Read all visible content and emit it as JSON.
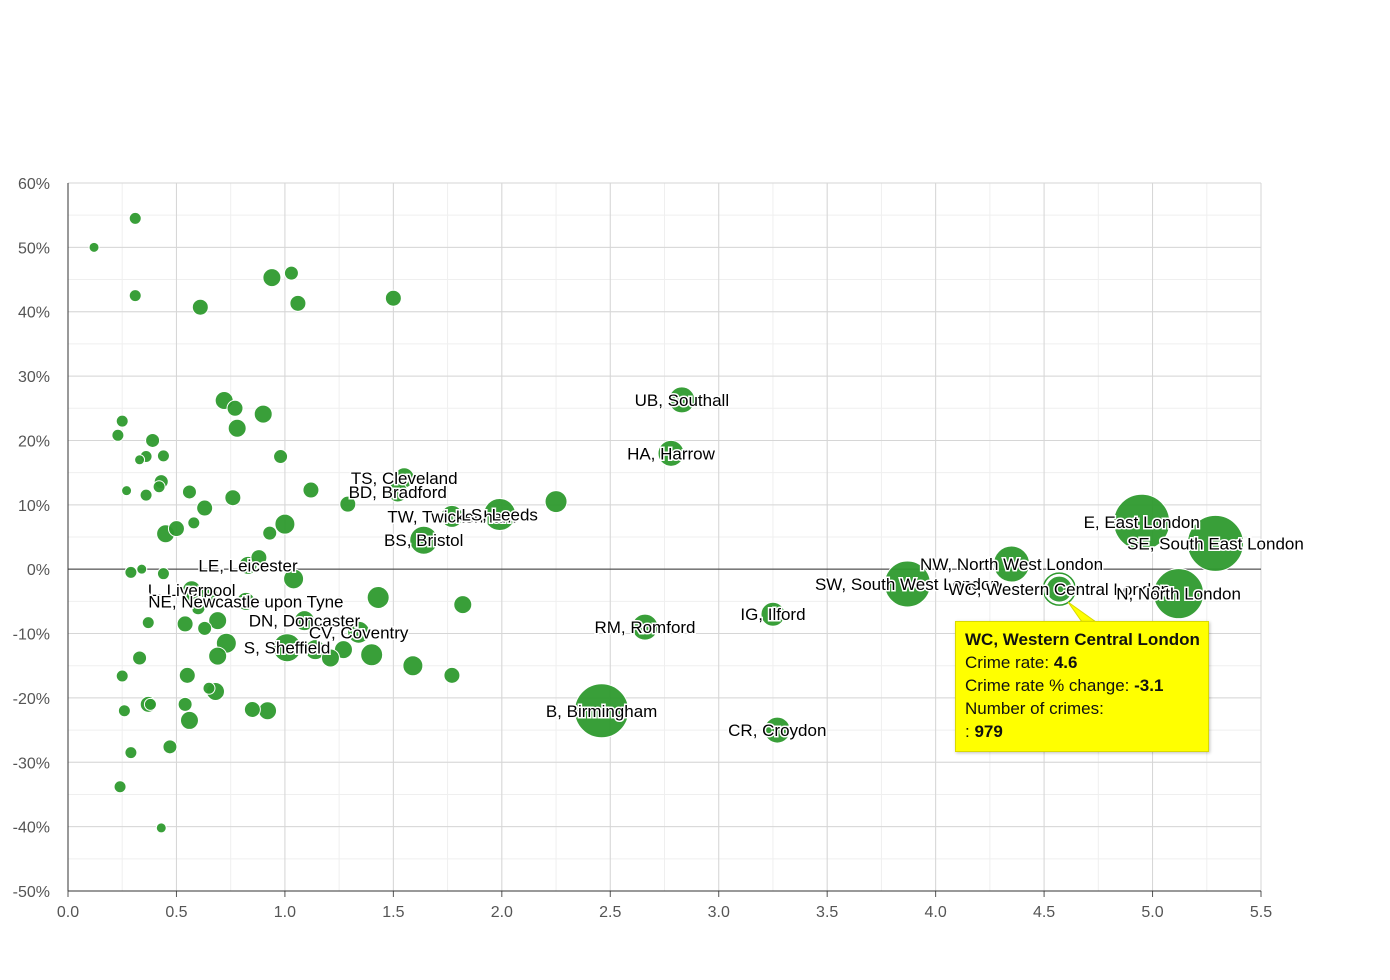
{
  "chart_data": {
    "type": "scatter",
    "title": "",
    "xlabel": "",
    "ylabel": "",
    "xlim": [
      0,
      5.5
    ],
    "ylim": [
      -50,
      60
    ],
    "x_ticks": [
      "0.0",
      "0.5",
      "1.0",
      "1.5",
      "2.0",
      "2.5",
      "3.0",
      "3.5",
      "4.0",
      "4.5",
      "5.0",
      "5.5"
    ],
    "y_ticks": [
      "60%",
      "50%",
      "40%",
      "30%",
      "20%",
      "10%",
      "0%",
      "-10%",
      "-20%",
      "-30%",
      "-40%",
      "-50%"
    ],
    "grid": true,
    "bubble_color": "#2e9a2e",
    "points": [
      {
        "x": 0.12,
        "y": 50.0,
        "s": 5
      },
      {
        "x": 0.31,
        "y": 54.5,
        "s": 6
      },
      {
        "x": 0.31,
        "y": 42.5,
        "s": 6
      },
      {
        "x": 0.61,
        "y": 40.7,
        "s": 8
      },
      {
        "x": 0.94,
        "y": 45.3,
        "s": 9
      },
      {
        "x": 1.03,
        "y": 46.0,
        "s": 7
      },
      {
        "x": 1.06,
        "y": 41.3,
        "s": 8
      },
      {
        "x": 1.5,
        "y": 42.1,
        "s": 8
      },
      {
        "x": 0.72,
        "y": 26.2,
        "s": 9
      },
      {
        "x": 0.77,
        "y": 25.0,
        "s": 8
      },
      {
        "x": 0.9,
        "y": 24.1,
        "s": 9
      },
      {
        "x": 0.78,
        "y": 21.9,
        "s": 9
      },
      {
        "x": 0.25,
        "y": 23.0,
        "s": 6
      },
      {
        "x": 0.23,
        "y": 20.8,
        "s": 6
      },
      {
        "x": 0.39,
        "y": 20.0,
        "s": 7
      },
      {
        "x": 0.36,
        "y": 17.5,
        "s": 6
      },
      {
        "x": 0.33,
        "y": 17.0,
        "s": 5
      },
      {
        "x": 0.44,
        "y": 17.6,
        "s": 6
      },
      {
        "x": 0.98,
        "y": 17.5,
        "s": 7
      },
      {
        "x": 0.27,
        "y": 12.2,
        "s": 5
      },
      {
        "x": 0.36,
        "y": 11.5,
        "s": 6
      },
      {
        "x": 0.42,
        "y": 12.8,
        "s": 6
      },
      {
        "x": 0.43,
        "y": 13.6,
        "s": 7
      },
      {
        "x": 0.56,
        "y": 12.0,
        "s": 7
      },
      {
        "x": 0.76,
        "y": 11.1,
        "s": 8
      },
      {
        "x": 1.12,
        "y": 12.3,
        "s": 8
      },
      {
        "x": 0.63,
        "y": 9.5,
        "s": 8
      },
      {
        "x": 1.29,
        "y": 10.1,
        "s": 8
      },
      {
        "x": 0.45,
        "y": 5.5,
        "s": 9
      },
      {
        "x": 0.5,
        "y": 6.3,
        "s": 8
      },
      {
        "x": 0.58,
        "y": 7.2,
        "s": 6
      },
      {
        "x": 0.93,
        "y": 5.6,
        "s": 7
      },
      {
        "x": 1.0,
        "y": 7.0,
        "s": 10
      },
      {
        "x": 1.55,
        "y": 14.2,
        "s": 10,
        "label": "TS, Cleveland"
      },
      {
        "x": 1.52,
        "y": 12.0,
        "s": 10,
        "label": "BD, Bradford"
      },
      {
        "x": 1.77,
        "y": 8.2,
        "s": 11,
        "label": "TW, Twickenham"
      },
      {
        "x": 1.99,
        "y": 8.5,
        "s": 16,
        "label": "LS, Leeds"
      },
      {
        "x": 1.64,
        "y": 4.5,
        "s": 14,
        "label": "BS, Bristol"
      },
      {
        "x": 2.25,
        "y": 10.5,
        "s": 11
      },
      {
        "x": 2.83,
        "y": 26.3,
        "s": 13,
        "label": "UB, Southall"
      },
      {
        "x": 2.78,
        "y": 18.0,
        "s": 13,
        "label": "HA, Harrow"
      },
      {
        "x": 0.83,
        "y": 0.6,
        "s": 9,
        "label": "LE, Leicester"
      },
      {
        "x": 0.88,
        "y": 1.8,
        "s": 8
      },
      {
        "x": 0.29,
        "y": -0.5,
        "s": 6
      },
      {
        "x": 0.34,
        "y": 0.0,
        "s": 5
      },
      {
        "x": 0.44,
        "y": -0.7,
        "s": 6
      },
      {
        "x": 1.04,
        "y": -1.5,
        "s": 10
      },
      {
        "x": 0.57,
        "y": -3.2,
        "s": 9,
        "label": "L, Liverpool"
      },
      {
        "x": 0.65,
        "y": -4.0,
        "s": 9
      },
      {
        "x": 0.58,
        "y": -4.0,
        "s": 8
      },
      {
        "x": 0.6,
        "y": -6.0,
        "s": 7
      },
      {
        "x": 0.82,
        "y": -5.0,
        "s": 9,
        "label": "NE, Newcastle upon Tyne"
      },
      {
        "x": 1.43,
        "y": -4.4,
        "s": 11
      },
      {
        "x": 1.82,
        "y": -5.5,
        "s": 9
      },
      {
        "x": 0.37,
        "y": -8.3,
        "s": 6
      },
      {
        "x": 0.54,
        "y": -8.5,
        "s": 8
      },
      {
        "x": 0.63,
        "y": -9.2,
        "s": 7
      },
      {
        "x": 0.69,
        "y": -8.0,
        "s": 9
      },
      {
        "x": 1.09,
        "y": -8.0,
        "s": 10,
        "label": "DN, Doncaster"
      },
      {
        "x": 1.34,
        "y": -9.8,
        "s": 11,
        "label": "CV, Coventry"
      },
      {
        "x": 0.73,
        "y": -11.5,
        "s": 10
      },
      {
        "x": 1.01,
        "y": -12.2,
        "s": 14,
        "label": "S, Sheffield"
      },
      {
        "x": 1.14,
        "y": -12.5,
        "s": 10
      },
      {
        "x": 1.27,
        "y": -12.5,
        "s": 9
      },
      {
        "x": 1.21,
        "y": -13.8,
        "s": 9
      },
      {
        "x": 1.4,
        "y": -13.3,
        "s": 11
      },
      {
        "x": 0.69,
        "y": -13.5,
        "s": 9
      },
      {
        "x": 0.33,
        "y": -13.8,
        "s": 7
      },
      {
        "x": 1.59,
        "y": -15.0,
        "s": 10
      },
      {
        "x": 1.77,
        "y": -16.5,
        "s": 8
      },
      {
        "x": 0.25,
        "y": -16.6,
        "s": 6
      },
      {
        "x": 0.55,
        "y": -16.5,
        "s": 8
      },
      {
        "x": 0.65,
        "y": -18.5,
        "s": 6
      },
      {
        "x": 0.68,
        "y": -19.0,
        "s": 9
      },
      {
        "x": 0.54,
        "y": -21.0,
        "s": 7
      },
      {
        "x": 0.37,
        "y": -21.0,
        "s": 8
      },
      {
        "x": 0.38,
        "y": -21.0,
        "s": 6
      },
      {
        "x": 0.26,
        "y": -22.0,
        "s": 6
      },
      {
        "x": 0.85,
        "y": -21.8,
        "s": 8
      },
      {
        "x": 0.92,
        "y": -22.0,
        "s": 9
      },
      {
        "x": 0.56,
        "y": -23.5,
        "s": 9
      },
      {
        "x": 0.47,
        "y": -27.6,
        "s": 7
      },
      {
        "x": 0.29,
        "y": -28.5,
        "s": 6
      },
      {
        "x": 0.24,
        "y": -33.8,
        "s": 6
      },
      {
        "x": 0.43,
        "y": -40.2,
        "s": 5
      },
      {
        "x": 2.66,
        "y": -9.0,
        "s": 13,
        "label": "RM, Romford"
      },
      {
        "x": 2.46,
        "y": -22.0,
        "s": 27,
        "label": "B, Birmingham"
      },
      {
        "x": 3.25,
        "y": -7.0,
        "s": 12,
        "label": "IG, Ilford"
      },
      {
        "x": 3.27,
        "y": -25.0,
        "s": 13,
        "label": "CR, Croydon"
      },
      {
        "x": 3.87,
        "y": -2.3,
        "s": 23,
        "label": "SW, South West London"
      },
      {
        "x": 4.35,
        "y": 0.8,
        "s": 18,
        "label": "NW, North West London"
      },
      {
        "x": 4.57,
        "y": -3.1,
        "s": 13,
        "label": "WC, Western Central London",
        "highlight": true
      },
      {
        "x": 4.95,
        "y": 7.3,
        "s": 28,
        "label": "E, East London"
      },
      {
        "x": 5.12,
        "y": -3.8,
        "s": 25,
        "label": "N, North London"
      },
      {
        "x": 5.29,
        "y": 4.0,
        "s": 28,
        "label": "SE, South East London"
      }
    ]
  },
  "tooltip": {
    "title": "WC, Western Central London",
    "rate_label": "Crime rate:",
    "rate_value": "4.6",
    "change_label": "Crime rate % change:",
    "change_value": "-3.1",
    "count_label": "Number of crimes:",
    "count_prefix": ": ",
    "count_value": "979"
  }
}
